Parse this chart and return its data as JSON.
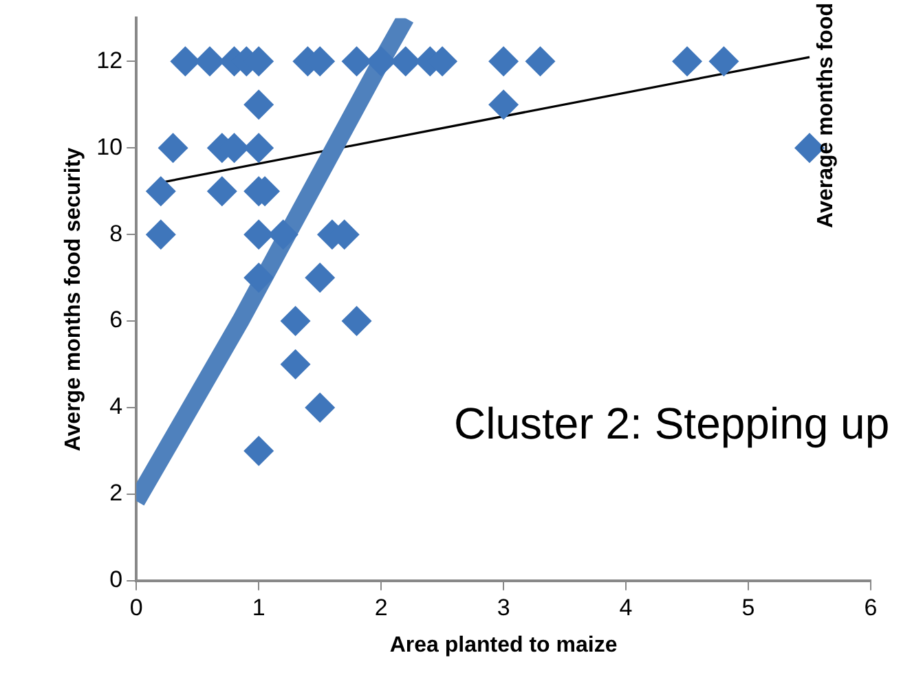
{
  "chart_data": {
    "type": "scatter",
    "xlabel": "Area planted to maize",
    "ylabel": "Averge months food security",
    "xlim": [
      0,
      6
    ],
    "ylim": [
      0,
      13
    ],
    "xticks": [
      0,
      1,
      2,
      3,
      4,
      5,
      6
    ],
    "yticks": [
      0,
      2,
      4,
      6,
      8,
      10,
      12
    ],
    "grid": false,
    "legend": false,
    "annotations": [
      "Cluster 2: Stepping up",
      "Average months food"
    ],
    "series": [
      {
        "marker": "diamond",
        "color": "#3f76bb",
        "x": [
          0.4,
          0.6,
          0.8,
          0.9,
          1.0,
          1.4,
          1.5,
          1.8,
          2.0,
          2.2,
          2.4,
          2.5,
          3.0,
          3.3,
          4.5,
          4.8,
          1.0,
          3.0,
          0.3,
          0.7,
          0.8,
          1.0,
          5.5,
          0.2,
          0.7,
          1.0,
          1.05,
          0.2,
          1.0,
          1.2,
          1.6,
          1.7,
          1.0,
          1.5,
          1.3,
          1.8,
          1.3,
          1.5,
          1.0
        ],
        "values": [
          12,
          12,
          12,
          12,
          12,
          12,
          12,
          12,
          12,
          12,
          12,
          12,
          12,
          12,
          12,
          12,
          11,
          11,
          10,
          10,
          10,
          10,
          10,
          9,
          9,
          9,
          9,
          8,
          8,
          8,
          8,
          8,
          7,
          7,
          6,
          6,
          5,
          4,
          3
        ]
      },
      {
        "type": "line",
        "marker": "none",
        "color": "#4f81bd",
        "x": [
          0,
          0.85,
          2.0,
          2.2
        ],
        "values": [
          1.84,
          6,
          12,
          13
        ]
      },
      {
        "type": "line",
        "marker": "none",
        "color": "#000000",
        "x": [
          0.2,
          5.5
        ],
        "values": [
          9.2,
          12.1
        ]
      }
    ]
  }
}
